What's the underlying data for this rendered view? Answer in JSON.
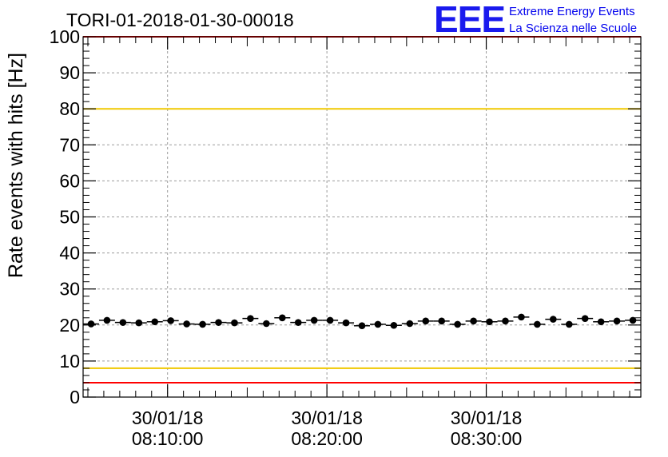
{
  "chart_data": {
    "type": "scatter",
    "title": "TORI-01-2018-01-30-00018",
    "ylabel": "Rate events with hits [Hz]",
    "xlabel": "",
    "ylim": [
      0,
      100
    ],
    "y_ticks": [
      "0",
      "10",
      "20",
      "30",
      "40",
      "50",
      "60",
      "70",
      "80",
      "90",
      "100"
    ],
    "x_ticks": [
      {
        "t": 10,
        "date": "30/01/18",
        "time": "08:10:00"
      },
      {
        "t": 20,
        "date": "30/01/18",
        "time": "08:20:00"
      },
      {
        "t": 30,
        "date": "30/01/18",
        "time": "08:30:00"
      }
    ],
    "xrange_minutes": [
      4.7,
      39.7
    ],
    "grid": true,
    "reference_lines": [
      {
        "y": 100,
        "color": "#ff0000"
      },
      {
        "y": 80,
        "color": "#f0c800"
      },
      {
        "y": 8,
        "color": "#f0c800"
      },
      {
        "y": 4,
        "color": "#ff0000"
      }
    ],
    "series": [
      {
        "x_minutes": [
          5.2,
          6.2,
          7.2,
          8.2,
          9.2,
          10.2,
          11.2,
          12.2,
          13.2,
          14.2,
          15.2,
          16.2,
          17.2,
          18.2,
          19.2,
          20.2,
          21.2,
          22.2,
          23.2,
          24.2,
          25.2,
          26.2,
          27.2,
          28.2,
          29.2,
          30.2,
          31.2,
          32.2,
          33.2,
          34.2,
          35.2,
          36.2,
          37.2,
          38.2,
          39.2
        ],
        "values": [
          20.3,
          21.3,
          20.7,
          20.6,
          20.9,
          21.2,
          20.3,
          20.2,
          20.7,
          20.6,
          21.8,
          20.4,
          22.0,
          20.7,
          21.3,
          21.3,
          20.6,
          19.8,
          20.2,
          19.9,
          20.4,
          21.1,
          21.1,
          20.2,
          21.1,
          20.9,
          21.1,
          22.2,
          20.2,
          21.6,
          20.2,
          21.8,
          20.9,
          21.1,
          21.3
        ],
        "color": "#000000"
      }
    ]
  },
  "logo": {
    "mark": "EEE",
    "line1": "Extreme Energy Events",
    "line2": "La Scienza nelle Scuole",
    "color": "#0000ee"
  }
}
